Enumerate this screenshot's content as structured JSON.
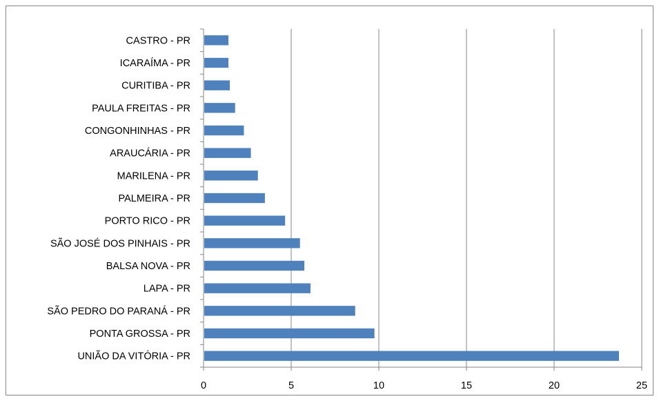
{
  "chart_data": {
    "type": "bar",
    "orientation": "horizontal",
    "categories": [
      "UNIÃO DA VITÓRIA - PR",
      "PONTA GROSSA - PR",
      "SÃO PEDRO DO PARANÁ - PR",
      "LAPA - PR",
      "BALSA NOVA - PR",
      "SÃO JOSÉ DOS PINHAIS - PR",
      "PORTO RICO - PR",
      "PALMEIRA - PR",
      "MARILENA - PR",
      "ARAUCÁRIA - PR",
      "CONGONHINHAS - PR",
      "PAULA FREITAS - PR",
      "CURITIBA - PR",
      "ICARAÍMA - PR",
      "CASTRO - PR"
    ],
    "values": [
      23.7,
      9.75,
      8.65,
      6.1,
      5.75,
      5.5,
      4.65,
      3.5,
      3.1,
      2.7,
      2.3,
      1.8,
      1.5,
      1.42,
      1.42
    ],
    "xlim": [
      0,
      25
    ],
    "xticks": [
      "0",
      "5",
      "10",
      "15",
      "20",
      "25"
    ],
    "grid": "vertical",
    "legend": "none",
    "title": "",
    "xlabel": "",
    "ylabel": "",
    "colors": {
      "bar": "#4f81bd",
      "grid": "#868686",
      "axis": "#868686",
      "border": "#868686"
    }
  }
}
